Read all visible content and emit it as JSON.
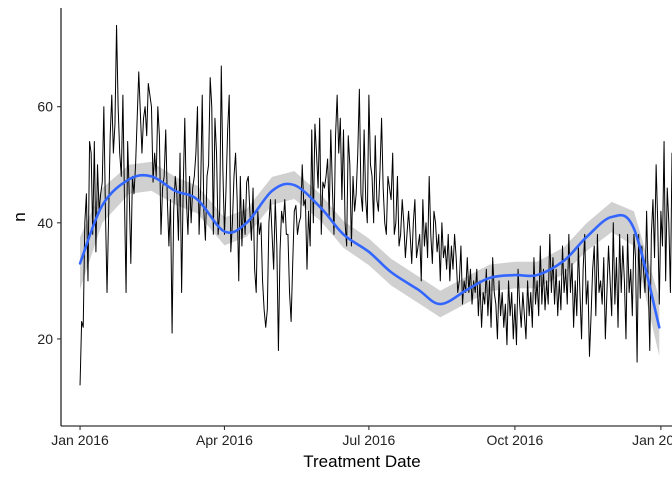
{
  "chart_data": {
    "type": "line",
    "title": "",
    "xlabel": "Treatment Date",
    "ylabel": "n",
    "x_ticks": [
      "Jan 2016",
      "Apr 2016",
      "Jul 2016",
      "Oct 2016",
      "Jan 2017"
    ],
    "y_ticks": [
      20,
      40,
      60
    ],
    "xlim": [
      "2015-12-20",
      "2017-01-08"
    ],
    "ylim": [
      5,
      77
    ],
    "grid": false,
    "legend": "none",
    "colors": {
      "raw": "#000000",
      "smooth": "#3366FF",
      "ribbon": "#c8c8c8"
    },
    "series": [
      {
        "type": "raw",
        "start_date": "2016-01-01",
        "step_days": 1,
        "values": [
          12,
          23,
          22,
          40,
          45,
          30,
          54,
          52,
          38,
          54,
          35,
          50,
          42,
          45,
          47,
          60,
          42,
          28,
          41,
          55,
          62,
          52,
          57,
          74,
          60,
          52,
          48,
          62,
          44,
          28,
          54,
          45,
          33,
          48,
          45,
          50,
          58,
          66,
          59,
          52,
          58,
          60,
          55,
          64,
          62,
          60,
          47,
          52,
          48,
          60,
          55,
          38,
          46,
          48,
          56,
          44,
          36,
          44,
          21,
          42,
          48,
          45,
          37,
          52,
          28,
          46,
          58,
          44,
          38,
          48,
          40,
          46,
          48,
          52,
          60,
          38,
          46,
          62,
          42,
          37,
          48,
          50,
          65,
          60,
          38,
          58,
          52,
          38,
          42,
          67,
          49,
          38,
          46,
          56,
          62,
          35,
          40,
          48,
          52,
          44,
          30,
          48,
          36,
          44,
          38,
          47,
          48,
          42,
          37,
          46,
          32,
          28,
          42,
          38,
          40,
          30,
          25,
          22,
          25,
          40,
          44,
          38,
          32,
          44,
          36,
          18,
          35,
          42,
          40,
          44,
          38,
          38,
          28,
          23,
          33,
          42,
          43,
          38,
          40,
          41,
          50,
          43,
          44,
          32,
          42,
          36,
          56,
          40,
          57,
          52,
          46,
          58,
          38,
          47,
          46,
          48,
          51,
          41,
          56,
          46,
          38,
          55,
          62,
          52,
          58,
          44,
          56,
          40,
          36,
          55,
          50,
          36,
          48,
          42,
          45,
          52,
          63,
          45,
          42,
          56,
          44,
          40,
          62,
          50,
          48,
          40,
          55,
          44,
          42,
          49,
          58,
          46,
          40,
          38,
          48,
          46,
          44,
          52,
          38,
          40,
          48,
          36,
          38,
          44,
          40,
          34,
          38,
          42,
          38,
          33,
          40,
          44,
          34,
          36,
          38,
          30,
          44,
          36,
          40,
          34,
          48,
          38,
          33,
          42,
          40,
          35,
          38,
          30,
          40,
          34,
          36,
          32,
          38,
          30,
          36,
          32,
          38,
          34,
          28,
          30,
          36,
          26,
          30,
          28,
          34,
          28,
          32,
          26,
          30,
          28,
          32,
          24,
          30,
          22,
          28,
          26,
          32,
          24,
          30,
          22,
          34,
          28,
          26,
          20,
          30,
          24,
          28,
          22,
          26,
          19,
          30,
          24,
          28,
          20,
          26,
          19,
          32,
          26,
          22,
          28,
          24,
          20,
          30,
          24,
          28,
          22,
          34,
          26,
          30,
          24,
          36,
          26,
          32,
          25,
          30,
          26,
          38,
          28,
          34,
          26,
          32,
          24,
          30,
          25,
          36,
          28,
          32,
          26,
          38,
          28,
          33,
          22,
          30,
          24,
          36,
          28,
          20,
          32,
          38,
          26,
          30,
          17,
          24,
          32,
          36,
          24,
          38,
          28,
          30,
          26,
          34,
          20,
          28,
          36,
          30,
          24,
          40,
          26,
          34,
          22,
          38,
          28,
          36,
          30,
          20,
          38,
          28,
          32,
          24,
          38,
          34,
          16,
          38,
          27,
          36,
          32,
          28,
          42,
          30,
          18,
          38,
          44,
          34,
          50,
          40,
          26,
          42,
          36,
          54,
          30,
          46,
          40,
          28,
          52,
          38,
          36,
          30,
          46,
          38,
          48,
          34,
          42,
          32,
          52,
          38,
          44,
          30,
          50,
          46,
          38,
          54,
          36,
          48,
          44,
          32,
          50,
          46,
          12,
          18,
          30,
          40,
          52,
          48,
          38,
          60,
          42,
          36,
          61,
          46,
          28,
          54,
          50,
          38,
          56,
          60,
          44,
          32,
          58,
          48,
          36,
          52,
          60,
          44,
          30,
          40,
          38,
          34,
          19,
          28,
          26,
          32,
          44,
          48,
          40,
          36,
          40,
          26,
          35,
          20,
          14,
          10,
          18,
          30,
          20,
          10,
          22,
          26,
          35,
          22,
          12,
          8
        ]
      },
      {
        "type": "smooth",
        "x": [
          "2016-01-01",
          "2016-01-15",
          "2016-02-01",
          "2016-02-15",
          "2016-03-01",
          "2016-03-15",
          "2016-04-01",
          "2016-04-15",
          "2016-05-01",
          "2016-05-15",
          "2016-06-01",
          "2016-06-15",
          "2016-07-01",
          "2016-07-15",
          "2016-08-01",
          "2016-08-15",
          "2016-09-01",
          "2016-09-15",
          "2016-10-01",
          "2016-10-15",
          "2016-11-01",
          "2016-11-15",
          "2016-12-01",
          "2016-12-15",
          "2016-12-31"
        ],
        "y": [
          33,
          43,
          47.5,
          48,
          45.5,
          44,
          38.5,
          40,
          45.5,
          46.5,
          42.5,
          38,
          35,
          31.5,
          28.5,
          26,
          28.5,
          30.5,
          31,
          31,
          33.5,
          37.5,
          41,
          39,
          22
        ],
        "se": [
          4.5,
          3.0,
          2.5,
          2.5,
          2.4,
          2.4,
          2.4,
          2.4,
          2.4,
          2.4,
          2.3,
          2.3,
          2.3,
          2.3,
          2.3,
          2.3,
          2.3,
          2.3,
          2.3,
          2.3,
          2.3,
          2.4,
          2.6,
          3.0,
          5.0
        ]
      }
    ]
  }
}
